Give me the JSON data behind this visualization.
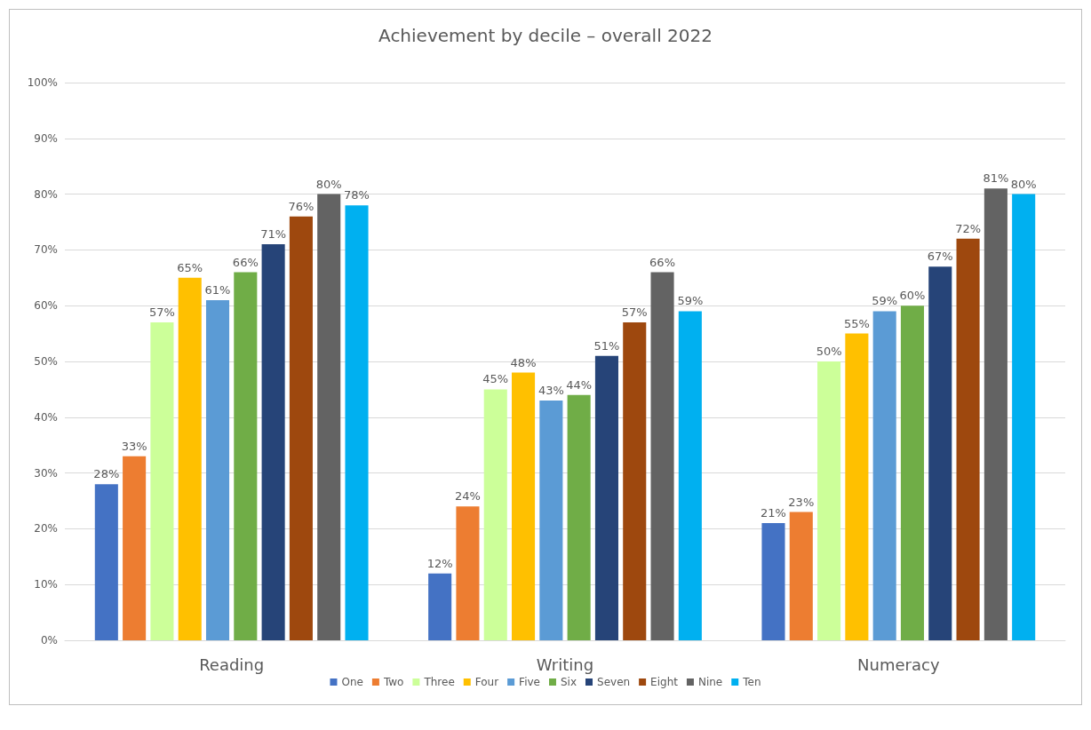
{
  "chart_data": {
    "type": "bar",
    "title": "Achievement by decile – overall 2022",
    "categories": [
      "Reading",
      "Writing",
      "Numeracy"
    ],
    "series": [
      {
        "name": "One",
        "color": "#4472c4",
        "values": [
          28,
          12,
          21
        ],
        "value_labels": [
          "28%",
          "12%",
          "21%"
        ]
      },
      {
        "name": "Two",
        "color": "#ed7d31",
        "values": [
          33,
          24,
          23
        ],
        "value_labels": [
          "33%",
          "24%",
          "23%"
        ]
      },
      {
        "name": "Three",
        "color": "#ccff99",
        "values": [
          57,
          45,
          50
        ],
        "value_labels": [
          "57%",
          "45%",
          "50%"
        ]
      },
      {
        "name": "Four",
        "color": "#ffc000",
        "values": [
          65,
          48,
          55
        ],
        "value_labels": [
          "65%",
          "48%",
          "55%"
        ]
      },
      {
        "name": "Five",
        "color": "#5b9bd5",
        "values": [
          61,
          43,
          59
        ],
        "value_labels": [
          "61%",
          "43%",
          "59%"
        ]
      },
      {
        "name": "Six",
        "color": "#70ad47",
        "values": [
          66,
          44,
          60
        ],
        "value_labels": [
          "66%",
          "44%",
          "60%"
        ]
      },
      {
        "name": "Seven",
        "color": "#264478",
        "values": [
          71,
          51,
          67
        ],
        "value_labels": [
          "71%",
          "51%",
          "67%"
        ]
      },
      {
        "name": "Eight",
        "color": "#9e480e",
        "values": [
          76,
          57,
          72
        ],
        "value_labels": [
          "76%",
          "57%",
          "72%"
        ]
      },
      {
        "name": "Nine",
        "color": "#636363",
        "values": [
          80,
          66,
          81
        ],
        "value_labels": [
          "80%",
          "66%",
          "81%"
        ]
      },
      {
        "name": "Ten",
        "color": "#00b0f0",
        "values": [
          78,
          59,
          80
        ],
        "value_labels": [
          "78%",
          "59%",
          "80%"
        ]
      }
    ],
    "ylim": [
      0,
      100
    ],
    "yticks": [
      {
        "value": 0,
        "label": "0%"
      },
      {
        "value": 10,
        "label": "10%"
      },
      {
        "value": 20,
        "label": "20%"
      },
      {
        "value": 30,
        "label": "30%"
      },
      {
        "value": 40,
        "label": "40%"
      },
      {
        "value": 50,
        "label": "50%"
      },
      {
        "value": 60,
        "label": "60%"
      },
      {
        "value": 70,
        "label": "70%"
      },
      {
        "value": 80,
        "label": "80%"
      },
      {
        "value": 90,
        "label": "90%"
      },
      {
        "value": 100,
        "label": "100%"
      }
    ],
    "grid": "y",
    "legend": "bottom"
  }
}
